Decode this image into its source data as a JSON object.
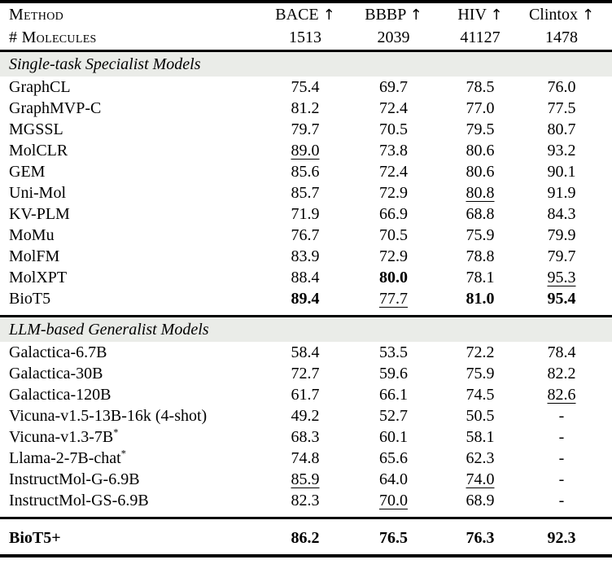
{
  "colors": {
    "background": "#ffffff",
    "text": "#000000",
    "rule": "#000000",
    "section_band": "#eaece8"
  },
  "table": {
    "header": {
      "method_label": "Method",
      "molecules_label": "# Molecules",
      "columns": [
        {
          "name": "BACE",
          "arrow": "↑",
          "molecules": "1513"
        },
        {
          "name": "BBBP",
          "arrow": "↑",
          "molecules": "2039"
        },
        {
          "name": "HIV",
          "arrow": "↑",
          "molecules": "41127"
        },
        {
          "name": "Clintox",
          "arrow": "↑",
          "molecules": "1478"
        }
      ]
    },
    "sections": [
      {
        "title": "Single-task Specialist Models",
        "rows": [
          {
            "method": "GraphCL",
            "values": [
              {
                "v": "75.4"
              },
              {
                "v": "69.7"
              },
              {
                "v": "78.5"
              },
              {
                "v": "76.0"
              }
            ]
          },
          {
            "method": "GraphMVP-C",
            "values": [
              {
                "v": "81.2"
              },
              {
                "v": "72.4"
              },
              {
                "v": "77.0"
              },
              {
                "v": "77.5"
              }
            ]
          },
          {
            "method": "MGSSL",
            "values": [
              {
                "v": "79.7"
              },
              {
                "v": "70.5"
              },
              {
                "v": "79.5"
              },
              {
                "v": "80.7"
              }
            ]
          },
          {
            "method": "MolCLR",
            "values": [
              {
                "v": "89.0",
                "underline": true
              },
              {
                "v": "73.8"
              },
              {
                "v": "80.6"
              },
              {
                "v": "93.2"
              }
            ]
          },
          {
            "method": "GEM",
            "values": [
              {
                "v": "85.6"
              },
              {
                "v": "72.4"
              },
              {
                "v": "80.6"
              },
              {
                "v": "90.1"
              }
            ]
          },
          {
            "method": "Uni-Mol",
            "values": [
              {
                "v": "85.7"
              },
              {
                "v": "72.9"
              },
              {
                "v": "80.8",
                "underline": true
              },
              {
                "v": "91.9"
              }
            ]
          },
          {
            "method": "KV-PLM",
            "values": [
              {
                "v": "71.9"
              },
              {
                "v": "66.9"
              },
              {
                "v": "68.8"
              },
              {
                "v": "84.3"
              }
            ]
          },
          {
            "method": "MoMu",
            "values": [
              {
                "v": "76.7"
              },
              {
                "v": "70.5"
              },
              {
                "v": "75.9"
              },
              {
                "v": "79.9"
              }
            ]
          },
          {
            "method": "MolFM",
            "values": [
              {
                "v": "83.9"
              },
              {
                "v": "72.9"
              },
              {
                "v": "78.8"
              },
              {
                "v": "79.7"
              }
            ]
          },
          {
            "method": "MolXPT",
            "values": [
              {
                "v": "88.4"
              },
              {
                "v": "80.0",
                "bold": true
              },
              {
                "v": "78.1"
              },
              {
                "v": "95.3",
                "underline": true
              }
            ]
          },
          {
            "method": "BioT5",
            "values": [
              {
                "v": "89.4",
                "bold": true
              },
              {
                "v": "77.7",
                "underline": true
              },
              {
                "v": "81.0",
                "bold": true
              },
              {
                "v": "95.4",
                "bold": true
              }
            ]
          }
        ]
      },
      {
        "title": "LLM-based Generalist Models",
        "rows": [
          {
            "method": "Galactica-6.7B",
            "values": [
              {
                "v": "58.4"
              },
              {
                "v": "53.5"
              },
              {
                "v": "72.2"
              },
              {
                "v": "78.4"
              }
            ]
          },
          {
            "method": "Galactica-30B",
            "values": [
              {
                "v": "72.7"
              },
              {
                "v": "59.6"
              },
              {
                "v": "75.9"
              },
              {
                "v": "82.2"
              }
            ]
          },
          {
            "method": "Galactica-120B",
            "values": [
              {
                "v": "61.7"
              },
              {
                "v": "66.1"
              },
              {
                "v": "74.5"
              },
              {
                "v": "82.6",
                "underline": true
              }
            ]
          },
          {
            "method": "Vicuna-v1.5-13B-16k (4-shot)",
            "values": [
              {
                "v": "49.2"
              },
              {
                "v": "52.7"
              },
              {
                "v": "50.5"
              },
              {
                "v": "-"
              }
            ]
          },
          {
            "method": "Vicuna-v1.3-7B",
            "method_sup": "*",
            "values": [
              {
                "v": "68.3"
              },
              {
                "v": "60.1"
              },
              {
                "v": "58.1"
              },
              {
                "v": "-"
              }
            ]
          },
          {
            "method": "Llama-2-7B-chat",
            "method_sup": "*",
            "values": [
              {
                "v": "74.8"
              },
              {
                "v": "65.6"
              },
              {
                "v": "62.3"
              },
              {
                "v": "-"
              }
            ]
          },
          {
            "method": "InstructMol-G-6.9B",
            "values": [
              {
                "v": "85.9",
                "underline": true
              },
              {
                "v": "64.0"
              },
              {
                "v": "74.0",
                "underline": true
              },
              {
                "v": "-"
              }
            ]
          },
          {
            "method": "InstructMol-GS-6.9B",
            "values": [
              {
                "v": "82.3"
              },
              {
                "v": "70.0",
                "underline": true
              },
              {
                "v": "68.9"
              },
              {
                "v": "-"
              }
            ]
          }
        ]
      }
    ],
    "summary_row": {
      "method": "BioT5+",
      "bold": true,
      "values": [
        {
          "v": "86.2",
          "bold": true
        },
        {
          "v": "76.5",
          "bold": true
        },
        {
          "v": "76.3",
          "bold": true
        },
        {
          "v": "92.3",
          "bold": true
        }
      ]
    }
  }
}
